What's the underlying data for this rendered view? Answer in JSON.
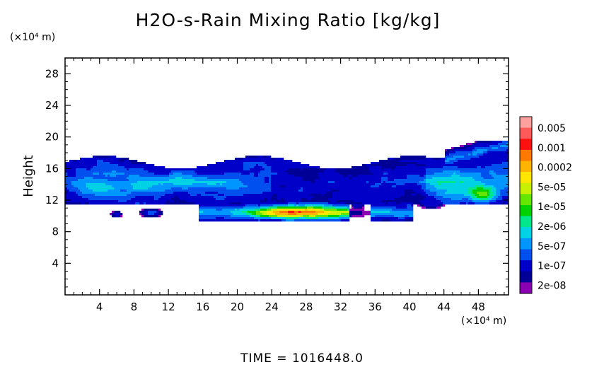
{
  "chart_data": {
    "type": "heatmap",
    "title": "H2O-s-Rain Mixing Ratio [kg/kg]",
    "ylabel": "Height",
    "x_unit_label": "(×10⁴ m)",
    "y_unit_label": "(×10⁴ m)",
    "footer": "TIME = 1016448.0",
    "xlim": [
      0,
      51.5
    ],
    "ylim": [
      0,
      30
    ],
    "x_ticks": [
      4,
      8,
      12,
      16,
      20,
      24,
      28,
      32,
      36,
      40,
      44,
      48
    ],
    "y_ticks": [
      4,
      8,
      12,
      16,
      20,
      24,
      28
    ],
    "colorbar": {
      "labels": [
        "0.005",
        "0.001",
        "0.0002",
        "5e-05",
        "1e-05",
        "2e-06",
        "5e-07",
        "1e-07",
        "2e-08"
      ],
      "colors": [
        "#ffa0a0",
        "#ff5a5a",
        "#ff1010",
        "#ff7800",
        "#ffb400",
        "#ffe600",
        "#c8f000",
        "#64e600",
        "#00d200",
        "#00e68c",
        "#00d2e6",
        "#0096ff",
        "#0050f0",
        "#0000c8",
        "#000096",
        "#8c00b4"
      ]
    },
    "regions": [
      {
        "name": "upper-cloud-layer",
        "x": [
          0,
          51.5
        ],
        "y": [
          11.5,
          19
        ],
        "level": "1e-07 to 5e-05"
      },
      {
        "name": "lower-rain-band",
        "x": [
          16,
          40
        ],
        "y": [
          9.5,
          11.5
        ],
        "level": "up to 0.001",
        "peak": {
          "x": 28,
          "y": 10.5
        }
      },
      {
        "name": "right-anvil",
        "x": [
          43,
          51.5
        ],
        "y": [
          11.5,
          19.5
        ],
        "level": "up to 5e-05"
      }
    ]
  }
}
